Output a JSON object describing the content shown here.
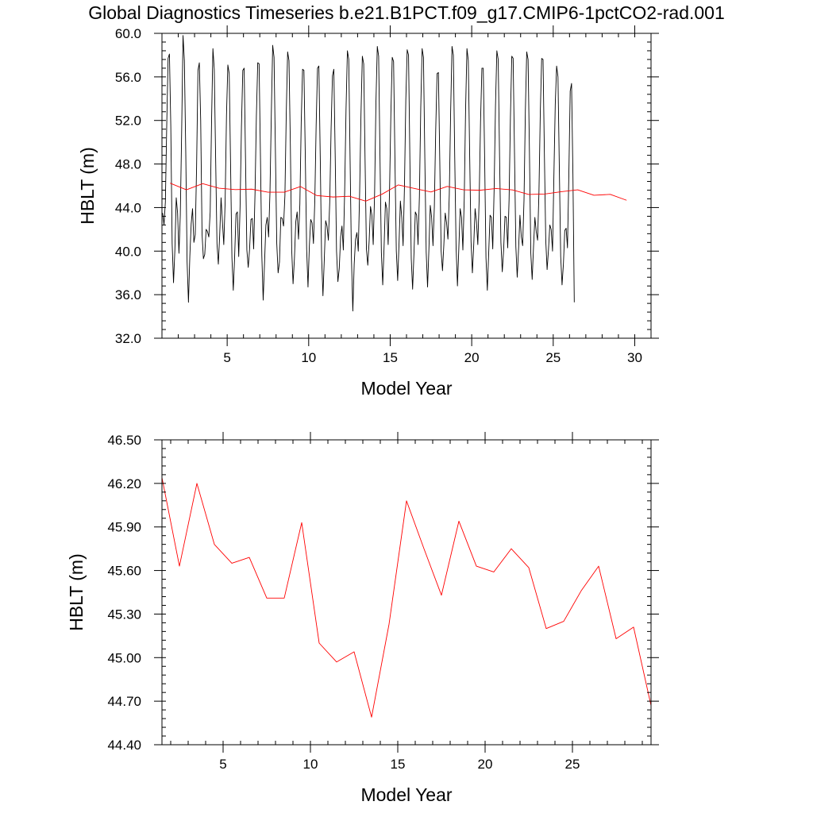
{
  "page": {
    "title": "Global Diagnostics Timeseries b.e21.B1PCT.f09_g17.CMIP6-1pctCO2-rad.001"
  },
  "colors": {
    "monthly_series": "#000000",
    "annual_series": "#ff0000"
  },
  "chart_data": [
    {
      "type": "line",
      "title": "Global Diagnostics Timeseries b.e21.B1PCT.f09_g17.CMIP6-1pctCO2-rad.001",
      "xlabel": "Model Year",
      "ylabel": "HBLT (m)",
      "xlim": [
        1.0,
        31.0
      ],
      "ylim": [
        32.0,
        60.0
      ],
      "xticks": [
        5,
        10,
        15,
        20,
        25,
        30
      ],
      "xtick_labels": [
        "5",
        "10",
        "15",
        "20",
        "25",
        "30"
      ],
      "yticks": [
        32,
        36,
        40,
        44,
        48,
        52,
        56,
        60
      ],
      "ytick_labels": [
        "32.0",
        "36.0",
        "40.0",
        "44.0",
        "48.0",
        "52.0",
        "56.0",
        "60.0"
      ],
      "grid": false,
      "series": [
        {
          "color": "#000000",
          "x_start": 1.0417,
          "x_step": 0.083333,
          "values": [
            43.5,
            42.4,
            44.5,
            51.5,
            57.7,
            58.1,
            51.5,
            40.7,
            37.1,
            40.1,
            44.9,
            43.5,
            39.8,
            43.3,
            51.0,
            59.8,
            57.5,
            49.2,
            39.0,
            35.3,
            39.5,
            42.5,
            43.9,
            40.8,
            41.5,
            47.8,
            56.6,
            57.3,
            52.0,
            41.6,
            39.3,
            39.7,
            42.0,
            41.8,
            41.3,
            43.6,
            51.9,
            58.6,
            56.7,
            48.6,
            40.7,
            38.8,
            41.5,
            44.9,
            42.7,
            40.6,
            44.5,
            52.5,
            57.1,
            56.3,
            48.0,
            39.4,
            36.4,
            39.5,
            43.4,
            43.6,
            39.5,
            44.1,
            51.4,
            56.6,
            56.8,
            48.5,
            40.1,
            38.5,
            40.2,
            42.9,
            43.0,
            40.2,
            45.3,
            52.4,
            57.3,
            57.2,
            48.6,
            39.6,
            35.5,
            38.9,
            42.4,
            43.1,
            41.3,
            45.4,
            52.6,
            58.9,
            57.8,
            49.2,
            40.7,
            38.0,
            39.0,
            43.1,
            43.0,
            42.3,
            45.1,
            52.7,
            58.3,
            57.5,
            49.8,
            40.1,
            37.0,
            39.3,
            42.7,
            43.6,
            41.1,
            44.3,
            51.8,
            56.7,
            56.6,
            48.8,
            40.2,
            36.7,
            40.5,
            42.9,
            42.6,
            40.7,
            44.6,
            51.6,
            56.8,
            57.0,
            48.7,
            39.5,
            35.9,
            39.3,
            42.8,
            42.3,
            41.0,
            44.5,
            51.2,
            56.1,
            56.7,
            48.9,
            40.0,
            37.2,
            38.4,
            41.3,
            42.3,
            40.1,
            45.6,
            53.1,
            58.4,
            57.6,
            48.2,
            39.2,
            34.5,
            38.8,
            41.1,
            41.7,
            40.0,
            45.4,
            52.6,
            57.9,
            57.2,
            48.4,
            40.2,
            38.7,
            40.9,
            44.1,
            43.3,
            40.6,
            45.2,
            53.6,
            58.8,
            57.9,
            48.5,
            39.9,
            36.9,
            40.4,
            44.5,
            43.9,
            40.6,
            45.4,
            52.6,
            57.8,
            57.4,
            48.3,
            40.0,
            37.3,
            40.7,
            44.6,
            43.1,
            40.5,
            45.9,
            53.9,
            58.5,
            58.0,
            48.3,
            39.3,
            36.5,
            39.8,
            43.6,
            43.3,
            40.6,
            45.0,
            53.2,
            58.6,
            57.8,
            48.5,
            39.9,
            36.7,
            40.2,
            44.2,
            43.1,
            40.5,
            44.1,
            51.1,
            56.3,
            56.4,
            48.3,
            40.0,
            38.2,
            40.6,
            43.5,
            42.6,
            41.1,
            45.2,
            52.8,
            58.8,
            58.0,
            48.7,
            40.4,
            36.8,
            40.2,
            43.9,
            43.1,
            40.1,
            44.8,
            53.0,
            58.6,
            57.5,
            48.8,
            40.9,
            38.0,
            40.6,
            43.9,
            42.7,
            40.6,
            44.8,
            51.9,
            56.8,
            56.8,
            48.7,
            39.4,
            36.4,
            39.8,
            43.3,
            43.1,
            40.2,
            45.7,
            53.3,
            58.4,
            57.6,
            48.7,
            40.8,
            38.1,
            40.1,
            43.2,
            43.1,
            40.3,
            44.7,
            52.3,
            57.9,
            57.7,
            49.0,
            40.4,
            37.6,
            40.2,
            43.3,
            41.3,
            40.5,
            44.7,
            52.9,
            58.3,
            57.6,
            49.1,
            39.8,
            37.4,
            40.4,
            43.1,
            41.8,
            41.0,
            45.4,
            52.8,
            57.7,
            57.6,
            48.9,
            41.0,
            38.3,
            40.1,
            42.4,
            42.0,
            40.0,
            46.9,
            53.5,
            57.0,
            56.0,
            47.6,
            39.5,
            36.9,
            38.8,
            41.9,
            42.1,
            40.3,
            47.0,
            54.7,
            55.4,
            47.1,
            35.3
          ]
        },
        {
          "color": "#ff0000",
          "x_start": 1.5,
          "x_step": 1.0,
          "values": [
            46.24,
            45.63,
            46.2,
            45.78,
            45.65,
            45.69,
            45.41,
            45.41,
            45.93,
            45.1,
            44.97,
            45.04,
            44.59,
            45.23,
            46.08,
            45.75,
            45.43,
            45.94,
            45.63,
            45.59,
            45.75,
            45.62,
            45.2,
            45.25,
            45.46,
            45.63,
            45.13,
            45.21,
            44.67
          ]
        }
      ]
    },
    {
      "type": "line",
      "title": "",
      "xlabel": "Model Year",
      "ylabel": "HBLT (m)",
      "xlim": [
        1.5,
        29.5
      ],
      "ylim": [
        44.4,
        46.5
      ],
      "xticks": [
        5,
        10,
        15,
        20,
        25
      ],
      "xtick_labels": [
        "5",
        "10",
        "15",
        "20",
        "25"
      ],
      "yticks": [
        44.4,
        44.7,
        45.0,
        45.3,
        45.6,
        45.9,
        46.2,
        46.5
      ],
      "ytick_labels": [
        "44.40",
        "44.70",
        "45.00",
        "45.30",
        "45.60",
        "45.90",
        "46.20",
        "46.50"
      ],
      "grid": false,
      "series": [
        {
          "color": "#ff0000",
          "x_start": 1.5,
          "x_step": 1.0,
          "values": [
            46.24,
            45.63,
            46.2,
            45.78,
            45.65,
            45.69,
            45.41,
            45.41,
            45.93,
            45.1,
            44.97,
            45.04,
            44.59,
            45.23,
            46.08,
            45.75,
            45.43,
            45.94,
            45.63,
            45.59,
            45.75,
            45.62,
            45.2,
            45.25,
            45.46,
            45.63,
            45.13,
            45.21,
            44.67
          ]
        }
      ]
    }
  ]
}
